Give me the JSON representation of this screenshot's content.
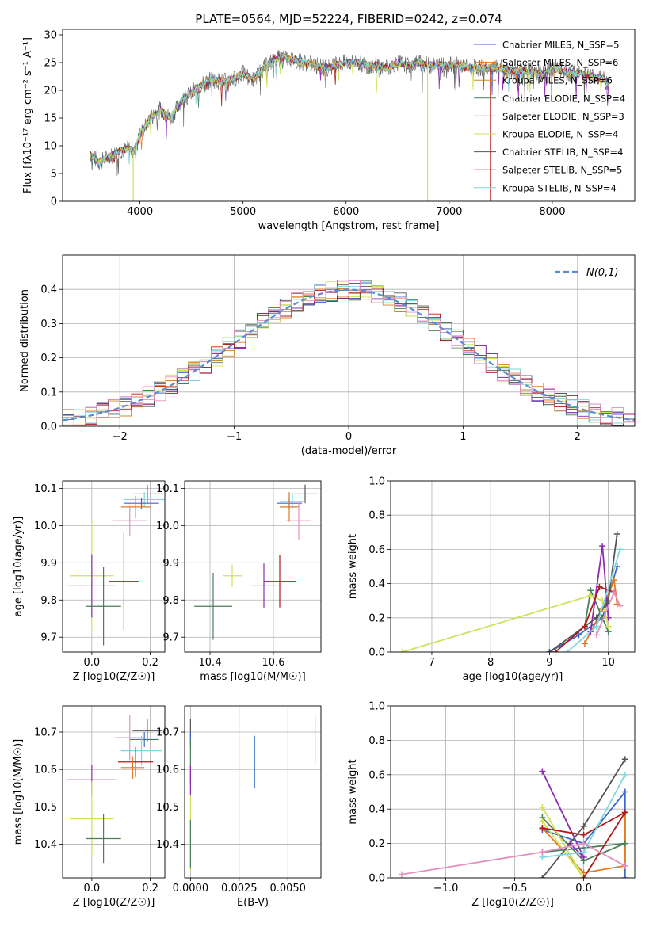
{
  "colors": {
    "chabrier_miles": "#3f66c8",
    "salpeter_miles": "#e07a26",
    "kroupa_miles": "#d4862a",
    "chabrier_elodie": "#4a7f5a",
    "salpeter_elodie": "#8e2bb0",
    "kroupa_elodie": "#cfe25a",
    "chabrier_stelib": "#555555",
    "salpeter_stelib": "#b01a1a",
    "kroupa_stelib": "#7fd8de",
    "pink": "#e58fbf",
    "gaussian": "#5b8bd0"
  },
  "chart_data": [
    {
      "id": "spectrum",
      "type": "line",
      "title": "PLATE=0564, MJD=52224, FIBERID=0242, z=0.074",
      "xlabel": "wavelength [Angstrom, rest frame]",
      "ylabel": "Flux [fλ10⁻¹⁷ erg cm⁻² s⁻¹ A⁻¹]",
      "xlim": [
        3250,
        8800
      ],
      "ylim": [
        0,
        31
      ],
      "xticks": [
        4000,
        5000,
        6000,
        7000,
        8000
      ],
      "yticks": [
        0,
        5,
        10,
        15,
        20,
        25,
        30
      ],
      "legend_position": "top-right",
      "legend": [
        {
          "label": "Chabrier MILES, N_SSP=5",
          "color": "#3f66c8"
        },
        {
          "label": "Salpeter MILES, N_SSP=6",
          "color": "#e07a26"
        },
        {
          "label": "Kroupa MILES, N_SSP=6",
          "color": "#d4862a"
        },
        {
          "label": "Chabrier ELODIE, N_SSP=4",
          "color": "#4a7f5a"
        },
        {
          "label": "Salpeter ELODIE, N_SSP=3",
          "color": "#8e2bb0"
        },
        {
          "label": "Kroupa ELODIE, N_SSP=4",
          "color": "#cfe25a"
        },
        {
          "label": "Chabrier STELIB, N_SSP=4",
          "color": "#555555"
        },
        {
          "label": "Salpeter STELIB, N_SSP=5",
          "color": "#b01a1a"
        },
        {
          "label": "Kroupa STELIB, N_SSP=4",
          "color": "#7fd8de"
        }
      ],
      "continuum": [
        [
          3520,
          8.5
        ],
        [
          3600,
          7
        ],
        [
          3700,
          8
        ],
        [
          3800,
          9
        ],
        [
          3900,
          9.5
        ],
        [
          3950,
          9
        ],
        [
          4000,
          12
        ],
        [
          4100,
          15
        ],
        [
          4200,
          16.5
        ],
        [
          4300,
          15
        ],
        [
          4400,
          18
        ],
        [
          4500,
          19.5
        ],
        [
          4600,
          21
        ],
        [
          4700,
          22
        ],
        [
          4800,
          21.5
        ],
        [
          4900,
          22
        ],
        [
          5000,
          23
        ],
        [
          5100,
          22
        ],
        [
          5200,
          24
        ],
        [
          5300,
          25.5
        ],
        [
          5400,
          26
        ],
        [
          5500,
          25.5
        ],
        [
          5600,
          25
        ],
        [
          5700,
          24.5
        ],
        [
          5800,
          24
        ],
        [
          5900,
          24.5
        ],
        [
          6000,
          25
        ],
        [
          6100,
          25
        ],
        [
          6200,
          24.5
        ],
        [
          6300,
          24.5
        ],
        [
          6400,
          24
        ],
        [
          6500,
          25
        ],
        [
          6600,
          24.5
        ],
        [
          6700,
          25
        ],
        [
          6800,
          24.5
        ],
        [
          6900,
          24.5
        ],
        [
          7000,
          24.5
        ],
        [
          7100,
          24.5
        ],
        [
          7200,
          24
        ],
        [
          7300,
          24
        ],
        [
          7400,
          24
        ],
        [
          7500,
          24
        ],
        [
          7600,
          23.5
        ],
        [
          7700,
          23.5
        ],
        [
          7800,
          23.5
        ],
        [
          7900,
          23
        ],
        [
          8000,
          24
        ],
        [
          8100,
          23.5
        ],
        [
          8200,
          23
        ],
        [
          8300,
          23
        ],
        [
          8400,
          22.5
        ],
        [
          8500,
          22
        ],
        [
          8550,
          21
        ]
      ],
      "dips": [
        [
          3935,
          0
        ],
        [
          6790,
          0
        ],
        [
          7400,
          0
        ]
      ]
    },
    {
      "id": "residuals",
      "type": "bar",
      "xlabel": "(data-model)/error",
      "ylabel": "Normed distribution",
      "xlim": [
        -2.5,
        2.5
      ],
      "ylim": [
        0,
        0.5
      ],
      "xticks": [
        -2,
        -1,
        0,
        1,
        2
      ],
      "yticks": [
        0.0,
        0.1,
        0.2,
        0.3,
        0.4
      ],
      "legend_position": "top-right",
      "legend": [
        {
          "label": "N(0,1)",
          "color": "#5b8bd0"
        }
      ],
      "bin_width": 0.1,
      "gaussian": {
        "mean": 0,
        "sigma": 1
      }
    },
    {
      "id": "age_vs_Z",
      "type": "scatter",
      "xlabel": "Z [log10(Z/Z☉)]",
      "ylabel": "age  [log10(age/yr)]",
      "xlim": [
        -0.1,
        0.25
      ],
      "ylim": [
        9.66,
        10.12
      ],
      "xticks": [
        0.0,
        0.2
      ],
      "yticks": [
        9.7,
        9.8,
        9.9,
        10.0,
        10.1
      ],
      "points": [
        {
          "x": 0.19,
          "y": 10.085,
          "xerr": 0.05,
          "yerr": 0.025,
          "color": "#555555"
        },
        {
          "x": 0.18,
          "y": 10.07,
          "xerr": 0.07,
          "yerr": 0.02,
          "color": "#7fd8de"
        },
        {
          "x": 0.17,
          "y": 10.06,
          "xerr": 0.06,
          "yerr": 0.015,
          "color": "#3f66c8"
        },
        {
          "x": 0.15,
          "y": 10.05,
          "xerr": 0.05,
          "yerr": 0.03,
          "color": "#e07a26"
        },
        {
          "x": 0.13,
          "y": 10.013,
          "xerr": 0.06,
          "yerr": 0.04,
          "color": "#e58fbf"
        },
        {
          "x": 0.11,
          "y": 9.85,
          "xerr": 0.05,
          "yerr": 0.13,
          "color": "#b01a1a"
        },
        {
          "x": 0.0,
          "y": 9.865,
          "xerr": 0.075,
          "yerr": 0.15,
          "color": "#cfe25a"
        },
        {
          "x": -0.0,
          "y": 9.838,
          "xerr": 0.085,
          "yerr": 0.085,
          "color": "#8e2bb0"
        },
        {
          "x": 0.04,
          "y": 9.783,
          "xerr": 0.06,
          "yerr": 0.105,
          "color": "#4a7f5a"
        }
      ]
    },
    {
      "id": "age_vs_mass",
      "type": "scatter",
      "xlabel": "mass [log10(M/M☉)]",
      "ylabel": "",
      "xlim": [
        10.32,
        10.75
      ],
      "ylim": [
        9.66,
        10.12
      ],
      "xticks": [
        10.4,
        10.6
      ],
      "yticks": [
        9.7,
        9.8,
        9.9,
        10.0,
        10.1
      ],
      "points": [
        {
          "x": 10.7,
          "y": 10.085,
          "xerr": 0.04,
          "yerr": 0.025,
          "color": "#555555"
        },
        {
          "x": 10.66,
          "y": 10.065,
          "xerr": 0.04,
          "yerr": 0.02,
          "color": "#7fd8de"
        },
        {
          "x": 10.65,
          "y": 10.06,
          "xerr": 0.04,
          "yerr": 0.015,
          "color": "#3f66c8"
        },
        {
          "x": 10.65,
          "y": 10.05,
          "xerr": 0.03,
          "yerr": 0.04,
          "color": "#e07a26"
        },
        {
          "x": 10.68,
          "y": 10.013,
          "xerr": 0.04,
          "yerr": 0.05,
          "color": "#e58fbf"
        },
        {
          "x": 10.62,
          "y": 9.85,
          "xerr": 0.05,
          "yerr": 0.07,
          "color": "#b01a1a"
        },
        {
          "x": 10.47,
          "y": 9.865,
          "xerr": 0.03,
          "yerr": 0.03,
          "color": "#cfe25a"
        },
        {
          "x": 10.57,
          "y": 9.838,
          "xerr": 0.04,
          "yerr": 0.06,
          "color": "#8e2bb0"
        },
        {
          "x": 10.41,
          "y": 9.783,
          "xerr": 0.06,
          "yerr": 0.09,
          "color": "#4a7f5a"
        }
      ]
    },
    {
      "id": "weight_vs_age",
      "type": "line",
      "xlabel": "age  [log10(age/yr)]",
      "ylabel": "mass weight",
      "xlim": [
        6.3,
        10.45
      ],
      "ylim": [
        0,
        1
      ],
      "xticks": [
        7,
        8,
        9,
        10
      ],
      "yticks": [
        0.0,
        0.2,
        0.4,
        0.6,
        0.8,
        1.0
      ],
      "series": [
        {
          "color": "#3f66c8",
          "points": [
            [
              9.0,
              0.0
            ],
            [
              9.5,
              0.1
            ],
            [
              9.9,
              0.2
            ],
            [
              10.15,
              0.5
            ]
          ]
        },
        {
          "color": "#e07a26",
          "points": [
            [
              9.6,
              0.05
            ],
            [
              9.9,
              0.25
            ],
            [
              10.1,
              0.42
            ],
            [
              10.15,
              0.28
            ]
          ]
        },
        {
          "color": "#4a7f5a",
          "points": [
            [
              9.6,
              0.15
            ],
            [
              9.7,
              0.36
            ],
            [
              9.9,
              0.2
            ],
            [
              10.0,
              0.12
            ]
          ]
        },
        {
          "color": "#8e2bb0",
          "points": [
            [
              9.7,
              0.12
            ],
            [
              9.9,
              0.62
            ],
            [
              10.0,
              0.2
            ]
          ]
        },
        {
          "color": "#cfe25a",
          "points": [
            [
              6.5,
              0.0
            ],
            [
              9.7,
              0.33
            ],
            [
              9.9,
              0.3
            ],
            [
              10.0,
              0.15
            ]
          ]
        },
        {
          "color": "#555555",
          "points": [
            [
              9.0,
              0.0
            ],
            [
              9.8,
              0.2
            ],
            [
              10.0,
              0.3
            ],
            [
              10.15,
              0.69
            ]
          ]
        },
        {
          "color": "#b01a1a",
          "points": [
            [
              9.1,
              0.0
            ],
            [
              9.6,
              0.15
            ],
            [
              9.85,
              0.38
            ],
            [
              10.1,
              0.35
            ]
          ]
        },
        {
          "color": "#7fd8de",
          "points": [
            [
              9.3,
              0.0
            ],
            [
              9.8,
              0.15
            ],
            [
              10.2,
              0.6
            ]
          ]
        },
        {
          "color": "#e58fbf",
          "points": [
            [
              9.8,
              0.1
            ],
            [
              10.1,
              0.35
            ],
            [
              10.2,
              0.27
            ]
          ]
        }
      ]
    },
    {
      "id": "mass_vs_Z",
      "type": "scatter",
      "xlabel": "Z [log10(Z/Z☉)]",
      "ylabel": "mass [log10(M/M☉)]",
      "xlim": [
        -0.1,
        0.25
      ],
      "ylim": [
        10.31,
        10.77
      ],
      "xticks": [
        0.0,
        0.2
      ],
      "yticks": [
        10.4,
        10.5,
        10.6,
        10.7
      ],
      "points": [
        {
          "x": 0.19,
          "y": 10.705,
          "xerr": 0.05,
          "yerr": 0.03,
          "color": "#555555"
        },
        {
          "x": 0.18,
          "y": 10.68,
          "xerr": 0.05,
          "yerr": 0.02,
          "color": "#3f66c8"
        },
        {
          "x": 0.17,
          "y": 10.65,
          "xerr": 0.07,
          "yerr": 0.04,
          "color": "#7fd8de"
        },
        {
          "x": 0.13,
          "y": 10.685,
          "xerr": 0.05,
          "yerr": 0.06,
          "color": "#e58fbf"
        },
        {
          "x": 0.15,
          "y": 10.62,
          "xerr": 0.06,
          "yerr": 0.04,
          "color": "#b01a1a"
        },
        {
          "x": 0.14,
          "y": 10.605,
          "xerr": 0.04,
          "yerr": 0.03,
          "color": "#e07a26"
        },
        {
          "x": 0.0,
          "y": 10.572,
          "xerr": 0.085,
          "yerr": 0.04,
          "color": "#8e2bb0"
        },
        {
          "x": 0.0,
          "y": 10.468,
          "xerr": 0.075,
          "yerr": 0.1,
          "color": "#cfe25a"
        },
        {
          "x": 0.04,
          "y": 10.415,
          "xerr": 0.06,
          "yerr": 0.065,
          "color": "#4a7f5a"
        }
      ]
    },
    {
      "id": "mass_vs_ebv",
      "type": "scatter",
      "xlabel": "E(B-V)",
      "ylabel": "",
      "xlim": [
        -0.0003,
        0.0067
      ],
      "ylim": [
        10.31,
        10.77
      ],
      "xticks": [
        0.0,
        0.0025,
        0.005
      ],
      "xticklabels": [
        "0.0000",
        "0.0025",
        "0.0050"
      ],
      "yticks": [
        10.4,
        10.5,
        10.6,
        10.7
      ],
      "points": [
        {
          "x": 0.0,
          "y": 10.705,
          "yerr": 0.03,
          "color": "#555555"
        },
        {
          "x": 0.0,
          "y": 10.68,
          "yerr": 0.02,
          "color": "#3f66c8"
        },
        {
          "x": 0.0,
          "y": 10.62,
          "yerr": 0.06,
          "color": "#4a7f5a"
        },
        {
          "x": 0.0,
          "y": 10.57,
          "yerr": 0.04,
          "color": "#8e2bb0"
        },
        {
          "x": 0.0,
          "y": 10.43,
          "yerr": 0.1,
          "color": "#cfe25a"
        },
        {
          "x": 0.0,
          "y": 10.4,
          "yerr": 0.065,
          "color": "#4a7f5a"
        },
        {
          "x": 0.0033,
          "y": 10.62,
          "yerr": 0.07,
          "color": "#5b8bd0"
        },
        {
          "x": 0.0064,
          "y": 10.68,
          "yerr": 0.065,
          "color": "#e58fbf"
        }
      ]
    },
    {
      "id": "weight_vs_Z",
      "type": "line",
      "xlabel": "Z [log10(Z/Z☉)]",
      "ylabel": "mass weight",
      "xlim": [
        -1.4,
        0.37
      ],
      "ylim": [
        0,
        1
      ],
      "xticks": [
        -1.0,
        -0.5,
        0.0
      ],
      "yticks": [
        0.0,
        0.2,
        0.4,
        0.6,
        0.8,
        1.0
      ],
      "series": [
        {
          "color": "#3f66c8",
          "points": [
            [
              -0.3,
              0.28
            ],
            [
              0.0,
              0.2
            ],
            [
              0.3,
              0.5
            ],
            [
              0.3,
              0.0
            ]
          ]
        },
        {
          "color": "#e07a26",
          "points": [
            [
              -0.3,
              0.29
            ],
            [
              0.0,
              0.03
            ],
            [
              0.3,
              0.07
            ],
            [
              0.3,
              0.38
            ]
          ]
        },
        {
          "color": "#4a7f5a",
          "points": [
            [
              -0.3,
              0.35
            ],
            [
              0.0,
              0.1
            ],
            [
              0.3,
              0.2
            ],
            [
              -0.3,
              0.15
            ]
          ]
        },
        {
          "color": "#8e2bb0",
          "points": [
            [
              -0.3,
              0.62
            ],
            [
              0.0,
              0.12
            ],
            [
              -0.1,
              0.2
            ]
          ]
        },
        {
          "color": "#cfe25a",
          "points": [
            [
              -0.3,
              0.41
            ],
            [
              0.0,
              0.0
            ],
            [
              -0.3,
              0.33
            ]
          ]
        },
        {
          "color": "#555555",
          "points": [
            [
              -0.3,
              0.0
            ],
            [
              0.0,
              0.3
            ],
            [
              0.3,
              0.69
            ]
          ]
        },
        {
          "color": "#b01a1a",
          "points": [
            [
              -0.3,
              0.29
            ],
            [
              0.0,
              0.25
            ],
            [
              0.3,
              0.38
            ],
            [
              0.0,
              0.0
            ]
          ]
        },
        {
          "color": "#7fd8de",
          "points": [
            [
              -0.3,
              0.12
            ],
            [
              0.0,
              0.15
            ],
            [
              0.3,
              0.6
            ]
          ]
        },
        {
          "color": "#e58fbf",
          "points": [
            [
              -1.32,
              0.02
            ],
            [
              -0.3,
              0.15
            ],
            [
              0.0,
              0.2
            ],
            [
              0.3,
              0.07
            ]
          ]
        }
      ]
    }
  ]
}
